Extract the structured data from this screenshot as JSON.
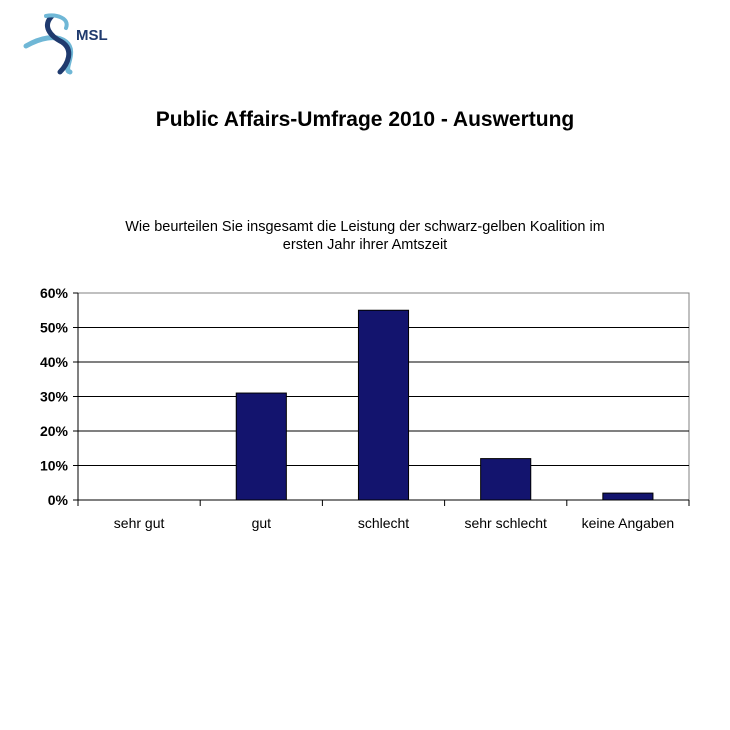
{
  "logo": {
    "text": "MSL",
    "colors": [
      "#6fb7d6",
      "#1f3a6e"
    ]
  },
  "page": {
    "title": "Public Affairs-Umfrage 2010 - Auswertung"
  },
  "chart_data": {
    "type": "bar",
    "title_lines": [
      "Wie beurteilen Sie insgesamt die Leistung der schwarz-gelben Koalition im",
      "ersten Jahr ihrer Amtszeit"
    ],
    "categories": [
      "sehr gut",
      "gut",
      "schlecht",
      "sehr schlecht",
      "keine Angaben"
    ],
    "values": [
      0,
      31,
      55,
      12,
      2
    ],
    "ylim": [
      0,
      60
    ],
    "yticks": [
      0,
      10,
      20,
      30,
      40,
      50,
      60
    ],
    "ytick_labels": [
      "0%",
      "10%",
      "20%",
      "30%",
      "40%",
      "50%",
      "60%"
    ],
    "grid": true,
    "bar_color": "#13146e",
    "xlabel": "",
    "ylabel": ""
  }
}
